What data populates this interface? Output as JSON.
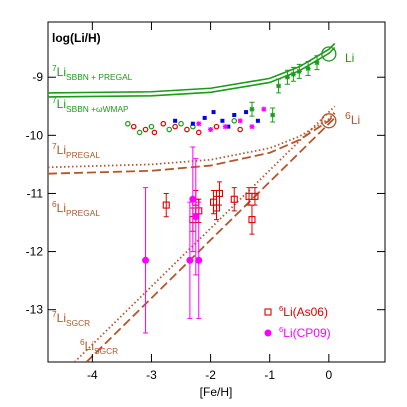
{
  "chart_data": {
    "type": "line",
    "title": "log(Li/H)",
    "x_label": "[Fe/H]",
    "xlim": [
      -4.75,
      0.95
    ],
    "ylim": [
      -13.9,
      -8.05
    ],
    "xticks": [
      -4,
      -3,
      -2,
      -1,
      0
    ],
    "yticks": [
      -9,
      -10,
      -11,
      -12,
      -13
    ],
    "series": [
      {
        "kind": "line",
        "style": "solid",
        "color": "#1a9c1a",
        "x": [
          -4.75,
          -3,
          -2,
          -1,
          -0.5,
          0,
          0.1
        ],
        "values": [
          -9.27,
          -9.25,
          -9.19,
          -9.02,
          -8.82,
          -8.52,
          -8.42
        ]
      },
      {
        "kind": "line",
        "style": "solid",
        "color": "#1a9c1a",
        "x": [
          -4.75,
          -3,
          -2,
          -1,
          -0.5,
          0,
          0.1
        ],
        "values": [
          -9.34,
          -9.32,
          -9.26,
          -9.09,
          -8.89,
          -8.59,
          -8.49
        ]
      },
      {
        "kind": "line",
        "style": "dotted",
        "color": "#b5562a",
        "x": [
          -4.75,
          -3,
          -2,
          -1,
          -0.5,
          0,
          0.1
        ],
        "values": [
          -10.55,
          -10.5,
          -10.42,
          -10.22,
          -10.02,
          -9.72,
          -9.6
        ]
      },
      {
        "kind": "line",
        "style": "dashed",
        "color": "#b5562a",
        "x": [
          -4.75,
          -3,
          -2,
          -1,
          -0.5,
          0,
          0.1
        ],
        "values": [
          -10.66,
          -10.61,
          -10.52,
          -10.3,
          -10.08,
          -9.75,
          -9.62
        ]
      },
      {
        "kind": "line",
        "style": "dotted",
        "color": "#b5562a",
        "x": [
          -4.3,
          0.1
        ],
        "values": [
          -13.9,
          -9.5
        ]
      },
      {
        "kind": "line",
        "style": "dashed",
        "color": "#b5562a",
        "x": [
          -4.1,
          0.1
        ],
        "values": [
          -13.9,
          -9.7
        ]
      },
      {
        "kind": "scatter",
        "marker": "open-circle",
        "color": "#e00000",
        "x": [
          -3.3,
          -3.1,
          -2.95,
          -2.8,
          -2.6,
          -2.4,
          -2.2,
          -1.9,
          -1.5
        ],
        "values": [
          -9.85,
          -9.9,
          -9.95,
          -9.8,
          -9.85,
          -9.9,
          -9.95,
          -9.85,
          -9.9
        ]
      },
      {
        "kind": "scatter",
        "marker": "open-circle",
        "color": "#1a9c1a",
        "x": [
          -3.4,
          -3.2,
          -3.0,
          -2.7,
          -2.5,
          -2.3,
          -1.6
        ],
        "values": [
          -9.8,
          -9.95,
          -9.85,
          -9.9,
          -9.8,
          -9.85,
          -9.75
        ]
      },
      {
        "kind": "scatter",
        "marker": "square",
        "color": "#0000ee",
        "x": [
          -2.6,
          -2.3,
          -2.1,
          -1.95,
          -1.8,
          -1.6,
          -1.4,
          -1.2,
          -1.7
        ],
        "values": [
          -9.75,
          -9.8,
          -9.7,
          -9.6,
          -9.75,
          -9.65,
          -9.6,
          -9.75,
          -9.85
        ]
      },
      {
        "kind": "scatter",
        "marker": "star",
        "color": "#ff00ff",
        "x": [
          -2.2,
          -2.0,
          -1.75,
          -1.5,
          -1.3,
          -1.1
        ],
        "values": [
          -9.8,
          -9.9,
          -9.85,
          -9.75,
          -9.85,
          -9.55
        ]
      },
      {
        "kind": "errorbar",
        "marker": "star",
        "color": "#1a9c1a",
        "x": [
          -1.3,
          -0.95,
          -0.85,
          -0.7,
          -0.6,
          -0.5,
          -0.35,
          -0.2
        ],
        "values": [
          -9.55,
          -9.65,
          -9.15,
          -9.0,
          -8.95,
          -8.9,
          -8.85,
          -8.75
        ],
        "errors": [
          0.12,
          0.12,
          0.12,
          0.12,
          0.12,
          0.12,
          0.12,
          0.12
        ]
      },
      {
        "kind": "errorbar",
        "marker": "open-square",
        "color": "#e00000",
        "x": [
          -2.75,
          -2.3,
          -2.25,
          -2.2,
          -1.95,
          -1.9,
          -1.85,
          -1.6,
          -1.35,
          -1.3,
          -1.25
        ],
        "values": [
          -11.2,
          -11.45,
          -11.15,
          -11.3,
          -11.15,
          -11.25,
          -11.0,
          -11.1,
          -11.05,
          -11.45,
          -11.05
        ],
        "errors": [
          0.2,
          0.2,
          0.2,
          0.2,
          0.2,
          0.2,
          0.2,
          0.2,
          0.15,
          0.25,
          0.15
        ]
      },
      {
        "kind": "errorbar",
        "marker": "dot",
        "color": "#ff00ff",
        "x": [
          -3.1,
          -2.35,
          -2.3,
          -2.25,
          -2.2
        ],
        "values": [
          -12.15,
          -12.15,
          -11.1,
          -11.4,
          -12.15
        ],
        "errors": [
          1.25,
          1.0,
          0.9,
          1.0,
          1.0
        ]
      },
      {
        "kind": "circle",
        "color": "#1a9c1a",
        "x": [
          0
        ],
        "values": [
          -8.6
        ]
      },
      {
        "kind": "circle",
        "color": "#b5562a",
        "x": [
          0
        ],
        "values": [
          -9.75
        ]
      }
    ],
    "labels": [
      {
        "sup": "7",
        "base": "Li",
        "sub": "SBBN + PREGAL",
        "color": "#1a9c1a"
      },
      {
        "sup": "7",
        "base": "Li",
        "sub": "SBBN +ωWMAP",
        "color": "#1a9c1a"
      },
      {
        "sup": "7",
        "base": "Li",
        "sub": "PREGAL",
        "color": "#b5562a"
      },
      {
        "sup": "6",
        "base": "Li",
        "sub": "PREGAL",
        "color": "#b5562a"
      },
      {
        "sup": "7",
        "base": "Li",
        "sub": "SGCR",
        "color": "#b5562a"
      },
      {
        "sup": "6",
        "base": "Li",
        "sub": "SGCR",
        "color": "#b5562a"
      },
      {
        "sup": "",
        "base": "Li",
        "sub": "",
        "color": "#1a9c1a"
      },
      {
        "sup": "6",
        "base": "Li",
        "sub": "",
        "color": "#b5562a"
      }
    ],
    "legend": [
      {
        "sup": "6",
        "base": "Li(As06)",
        "color": "#e00000",
        "marker": "open-square"
      },
      {
        "sup": "6",
        "base": "Li(CP09)",
        "color": "#ff00ff",
        "marker": "dot"
      }
    ]
  }
}
